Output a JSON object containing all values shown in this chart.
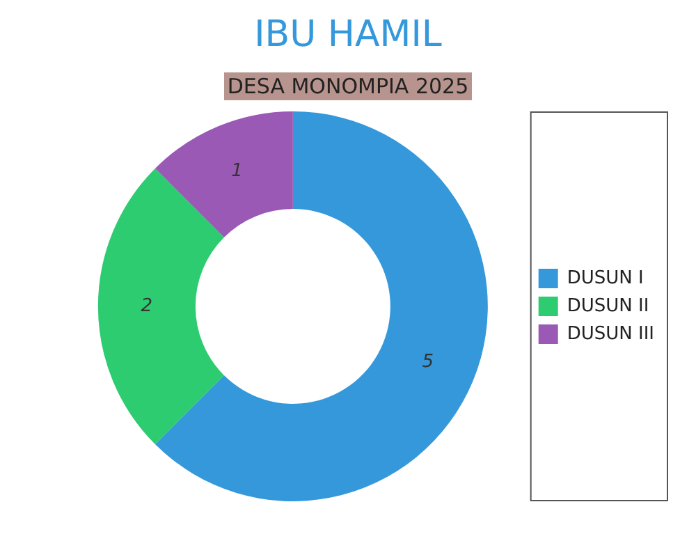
{
  "chart_data": {
    "type": "donut",
    "title": "IBU HAMIL",
    "subtitle": "DESA MONOMPIA 2025",
    "categories": [
      "DUSUN I",
      "DUSUN II",
      "DUSUN III"
    ],
    "values": [
      5,
      2,
      1
    ],
    "colors": [
      "#3498db",
      "#2ecc71",
      "#9b59b6"
    ],
    "legend": "right",
    "data_labels": true
  }
}
